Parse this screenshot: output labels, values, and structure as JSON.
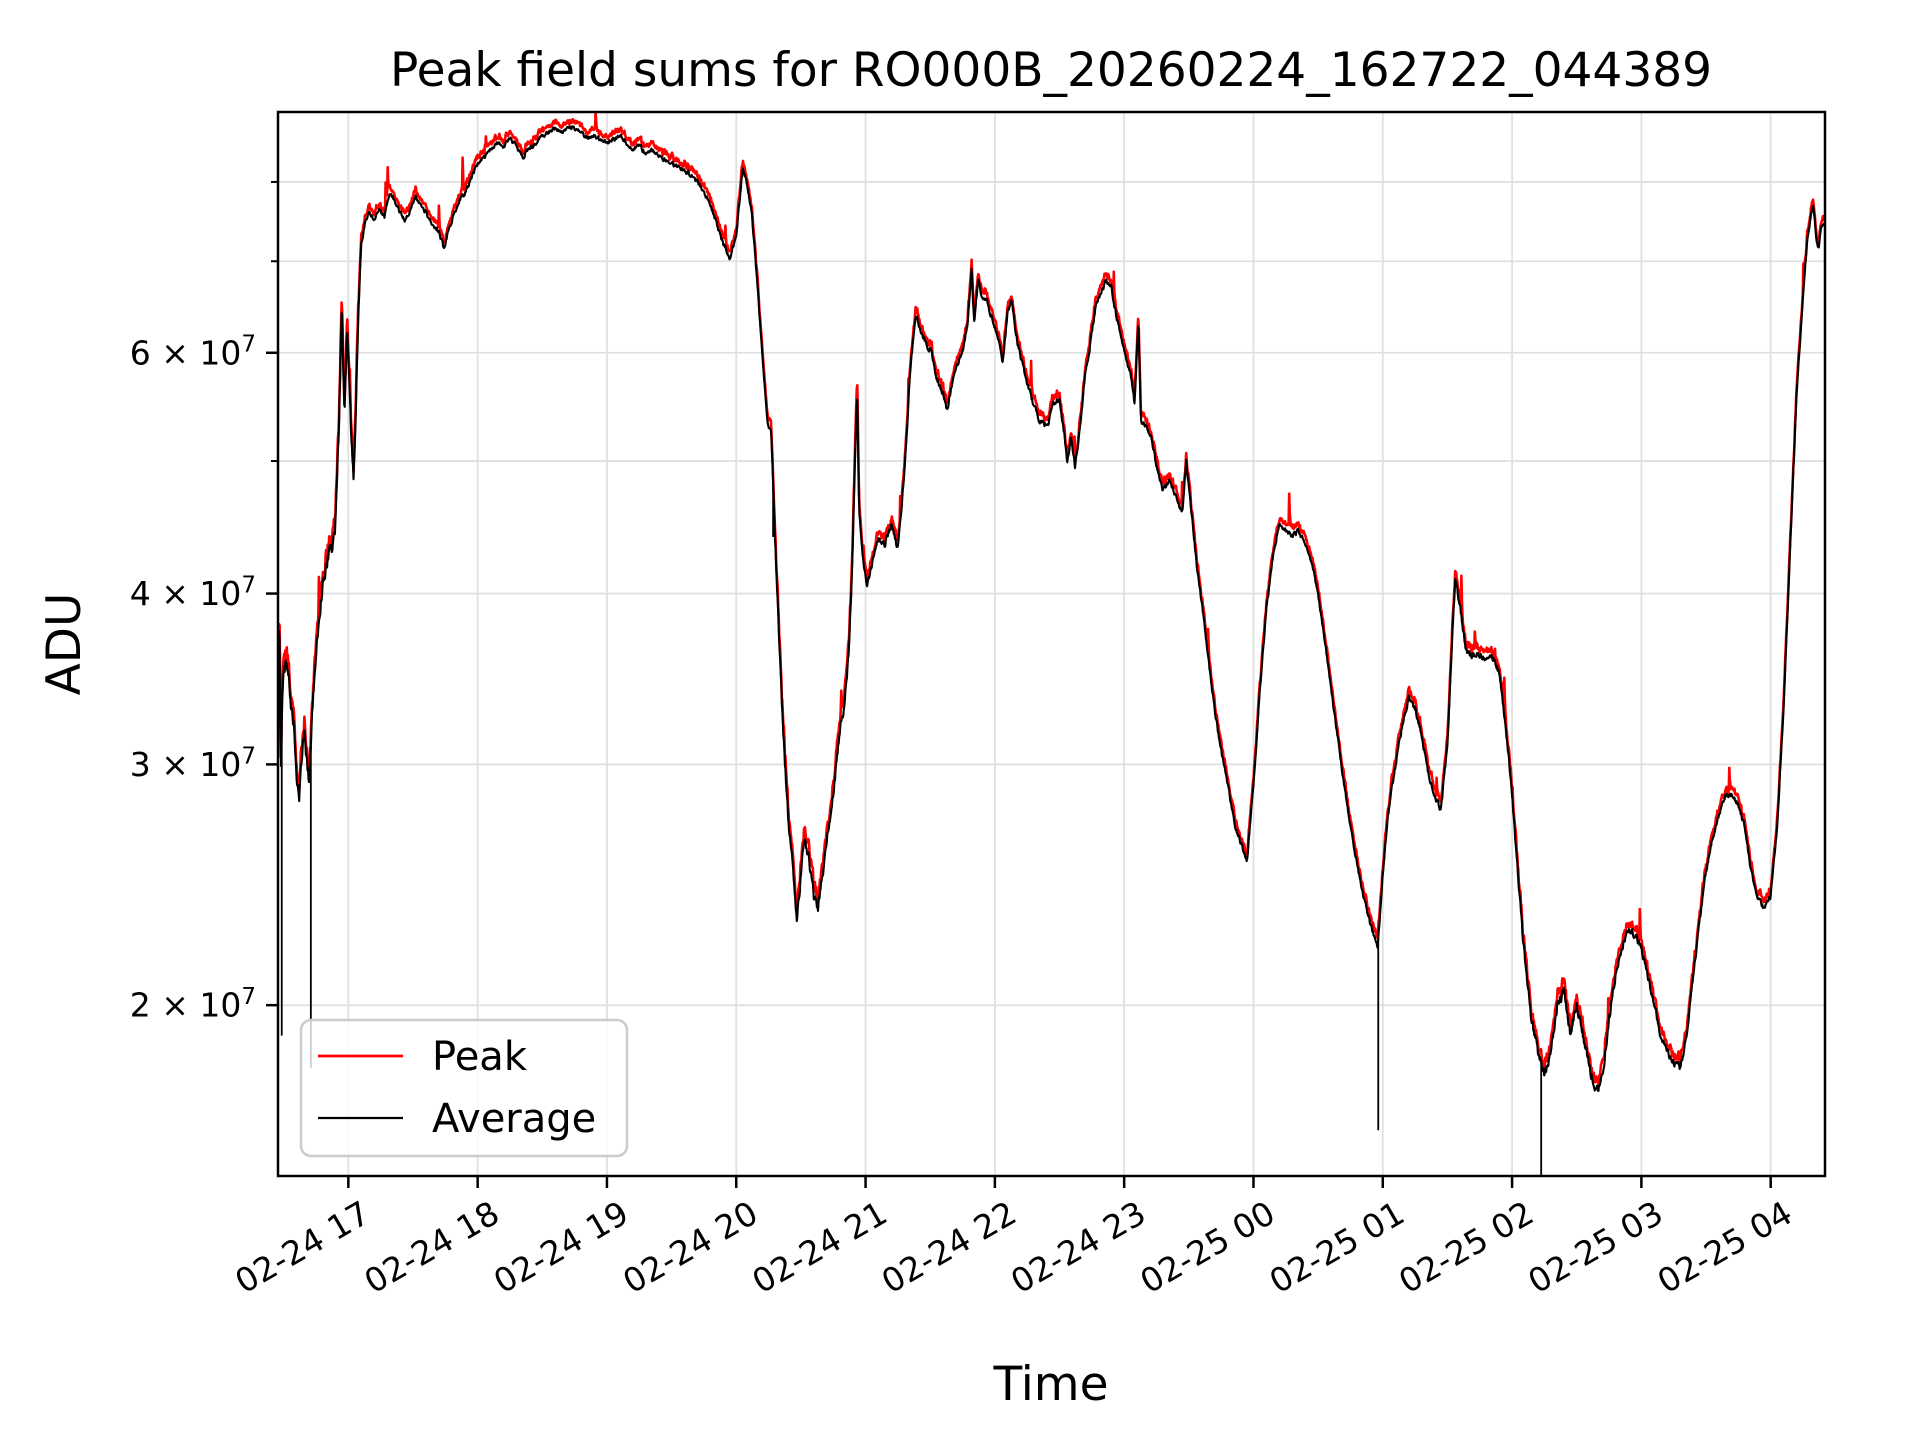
{
  "figure": {
    "title": "Peak field sums for RO000B_20260224_162722_044389",
    "xlabel": "Time",
    "ylabel": "ADU",
    "background": "#ffffff",
    "spine_color": "#000000",
    "grid_color": "#e0e0e0"
  },
  "legend": {
    "position": "lower-left",
    "items": [
      {
        "label": "Peak",
        "color": "#ff0000"
      },
      {
        "label": "Average",
        "color": "#000000"
      }
    ]
  },
  "chart_data": {
    "type": "line",
    "title": "Peak field sums for RO000B_20260224_162722_044389",
    "xlabel": "Time",
    "ylabel": "ADU",
    "yscale": "log",
    "ylim": [
      15000000,
      90000000
    ],
    "xlim_hours": [
      16.456,
      28.42
    ],
    "x_start_label": "02-24 16:27:22",
    "grid": true,
    "x_ticks": [
      {
        "hour": 17,
        "label": "02-24 17"
      },
      {
        "hour": 18,
        "label": "02-24 18"
      },
      {
        "hour": 19,
        "label": "02-24 19"
      },
      {
        "hour": 20,
        "label": "02-24 20"
      },
      {
        "hour": 21,
        "label": "02-24 21"
      },
      {
        "hour": 22,
        "label": "02-24 22"
      },
      {
        "hour": 23,
        "label": "02-24 23"
      },
      {
        "hour": 24,
        "label": "02-25 00"
      },
      {
        "hour": 25,
        "label": "02-25 01"
      },
      {
        "hour": 26,
        "label": "02-25 02"
      },
      {
        "hour": 27,
        "label": "02-25 03"
      },
      {
        "hour": 28,
        "label": "02-25 04"
      }
    ],
    "y_ticks_labeled": [
      {
        "value": 20000000,
        "base": "2 × 10",
        "exp": "7"
      },
      {
        "value": 30000000,
        "base": "3 × 10",
        "exp": "7"
      },
      {
        "value": 40000000,
        "base": "4 × 10",
        "exp": "7"
      },
      {
        "value": 60000000,
        "base": "6 × 10",
        "exp": "7"
      }
    ],
    "y_ticks_minor": [
      50000000,
      70000000,
      80000000
    ],
    "series": [
      {
        "name": "Peak",
        "color": "#ff0000",
        "note": "tracks Average with small positive offset and short upward spikes"
      },
      {
        "name": "Average",
        "color": "#000000",
        "units": "ADU x 1e7",
        "keypoints": [
          [
            16.456,
            3.0
          ],
          [
            16.465,
            3.85
          ],
          [
            16.47,
            3.6
          ],
          [
            16.48,
            3.0
          ],
          [
            16.49,
            3.4
          ],
          [
            16.5,
            3.5
          ],
          [
            16.52,
            3.55
          ],
          [
            16.54,
            3.45
          ],
          [
            16.56,
            3.3
          ],
          [
            16.58,
            3.2
          ],
          [
            16.6,
            2.95
          ],
          [
            16.62,
            2.85
          ],
          [
            16.64,
            3.05
          ],
          [
            16.66,
            3.2
          ],
          [
            16.68,
            3.0
          ],
          [
            16.7,
            2.9
          ],
          [
            16.72,
            3.3
          ],
          [
            16.75,
            3.6
          ],
          [
            16.78,
            3.9
          ],
          [
            16.81,
            4.1
          ],
          [
            16.84,
            4.25
          ],
          [
            16.87,
            4.3
          ],
          [
            16.9,
            4.5
          ],
          [
            16.93,
            5.4
          ],
          [
            16.95,
            6.5
          ],
          [
            16.97,
            5.35
          ],
          [
            16.99,
            6.2
          ],
          [
            17.02,
            5.3
          ],
          [
            17.04,
            4.85
          ],
          [
            17.06,
            5.5
          ],
          [
            17.08,
            6.5
          ],
          [
            17.1,
            7.2
          ],
          [
            17.13,
            7.45
          ],
          [
            17.16,
            7.6
          ],
          [
            17.2,
            7.5
          ],
          [
            17.24,
            7.65
          ],
          [
            17.28,
            7.55
          ],
          [
            17.32,
            7.85
          ],
          [
            17.36,
            7.75
          ],
          [
            17.4,
            7.6
          ],
          [
            17.44,
            7.5
          ],
          [
            17.48,
            7.65
          ],
          [
            17.52,
            7.8
          ],
          [
            17.56,
            7.7
          ],
          [
            17.6,
            7.6
          ],
          [
            17.65,
            7.45
          ],
          [
            17.7,
            7.35
          ],
          [
            17.74,
            7.15
          ],
          [
            17.78,
            7.4
          ],
          [
            17.82,
            7.6
          ],
          [
            17.86,
            7.75
          ],
          [
            17.9,
            7.85
          ],
          [
            17.95,
            8.05
          ],
          [
            18.0,
            8.25
          ],
          [
            18.05,
            8.35
          ],
          [
            18.1,
            8.45
          ],
          [
            18.15,
            8.55
          ],
          [
            18.2,
            8.5
          ],
          [
            18.25,
            8.6
          ],
          [
            18.3,
            8.5
          ],
          [
            18.35,
            8.35
          ],
          [
            18.4,
            8.45
          ],
          [
            18.45,
            8.55
          ],
          [
            18.5,
            8.65
          ],
          [
            18.55,
            8.7
          ],
          [
            18.6,
            8.75
          ],
          [
            18.65,
            8.7
          ],
          [
            18.7,
            8.8
          ],
          [
            18.75,
            8.75
          ],
          [
            18.8,
            8.7
          ],
          [
            18.85,
            8.6
          ],
          [
            18.9,
            8.65
          ],
          [
            18.95,
            8.6
          ],
          [
            19.0,
            8.55
          ],
          [
            19.05,
            8.6
          ],
          [
            19.1,
            8.65
          ],
          [
            19.15,
            8.55
          ],
          [
            19.2,
            8.45
          ],
          [
            19.25,
            8.5
          ],
          [
            19.3,
            8.4
          ],
          [
            19.35,
            8.45
          ],
          [
            19.4,
            8.35
          ],
          [
            19.45,
            8.3
          ],
          [
            19.5,
            8.25
          ],
          [
            19.55,
            8.2
          ],
          [
            19.6,
            8.15
          ],
          [
            19.65,
            8.1
          ],
          [
            19.7,
            8.0
          ],
          [
            19.75,
            7.85
          ],
          [
            19.8,
            7.7
          ],
          [
            19.85,
            7.45
          ],
          [
            19.9,
            7.2
          ],
          [
            19.95,
            7.05
          ],
          [
            20.0,
            7.3
          ],
          [
            20.05,
            8.2
          ],
          [
            20.08,
            8.0
          ],
          [
            20.12,
            7.6
          ],
          [
            20.16,
            6.8
          ],
          [
            20.2,
            6.0
          ],
          [
            20.24,
            5.35
          ],
          [
            20.27,
            5.25
          ],
          [
            20.3,
            4.4
          ],
          [
            20.33,
            3.75
          ],
          [
            20.36,
            3.2
          ],
          [
            20.4,
            2.75
          ],
          [
            20.44,
            2.5
          ],
          [
            20.47,
            2.32
          ],
          [
            20.5,
            2.5
          ],
          [
            20.53,
            2.65
          ],
          [
            20.56,
            2.55
          ],
          [
            20.6,
            2.4
          ],
          [
            20.63,
            2.35
          ],
          [
            20.67,
            2.5
          ],
          [
            20.71,
            2.7
          ],
          [
            20.75,
            2.85
          ],
          [
            20.79,
            3.1
          ],
          [
            20.83,
            3.3
          ],
          [
            20.87,
            3.6
          ],
          [
            20.9,
            4.3
          ],
          [
            20.92,
            5.1
          ],
          [
            20.935,
            5.6
          ],
          [
            20.95,
            4.6
          ],
          [
            20.98,
            4.25
          ],
          [
            21.01,
            4.05
          ],
          [
            21.05,
            4.2
          ],
          [
            21.1,
            4.4
          ],
          [
            21.15,
            4.35
          ],
          [
            21.2,
            4.5
          ],
          [
            21.25,
            4.3
          ],
          [
            21.3,
            4.9
          ],
          [
            21.35,
            5.9
          ],
          [
            21.39,
            6.4
          ],
          [
            21.43,
            6.2
          ],
          [
            21.47,
            6.1
          ],
          [
            21.51,
            6.0
          ],
          [
            21.55,
            5.75
          ],
          [
            21.6,
            5.6
          ],
          [
            21.63,
            5.45
          ],
          [
            21.67,
            5.7
          ],
          [
            21.71,
            5.9
          ],
          [
            21.75,
            6.0
          ],
          [
            21.79,
            6.3
          ],
          [
            21.82,
            6.9
          ],
          [
            21.84,
            6.3
          ],
          [
            21.87,
            6.8
          ],
          [
            21.9,
            6.6
          ],
          [
            21.94,
            6.55
          ],
          [
            21.98,
            6.35
          ],
          [
            22.02,
            6.2
          ],
          [
            22.06,
            5.9
          ],
          [
            22.1,
            6.45
          ],
          [
            22.13,
            6.55
          ],
          [
            22.16,
            6.2
          ],
          [
            22.2,
            5.95
          ],
          [
            22.25,
            5.7
          ],
          [
            22.3,
            5.5
          ],
          [
            22.35,
            5.35
          ],
          [
            22.41,
            5.3
          ],
          [
            22.45,
            5.5
          ],
          [
            22.5,
            5.55
          ],
          [
            22.54,
            5.2
          ],
          [
            22.56,
            4.97
          ],
          [
            22.59,
            5.2
          ],
          [
            22.62,
            4.95
          ],
          [
            22.66,
            5.3
          ],
          [
            22.7,
            5.8
          ],
          [
            22.74,
            6.1
          ],
          [
            22.78,
            6.5
          ],
          [
            22.82,
            6.65
          ],
          [
            22.86,
            6.75
          ],
          [
            22.9,
            6.7
          ],
          [
            22.93,
            6.45
          ],
          [
            22.97,
            6.2
          ],
          [
            23.01,
            5.95
          ],
          [
            23.05,
            5.8
          ],
          [
            23.08,
            5.5
          ],
          [
            23.11,
            6.35
          ],
          [
            23.13,
            5.35
          ],
          [
            23.17,
            5.3
          ],
          [
            23.21,
            5.2
          ],
          [
            23.25,
            4.95
          ],
          [
            23.3,
            4.75
          ],
          [
            23.35,
            4.85
          ],
          [
            23.4,
            4.7
          ],
          [
            23.45,
            4.6
          ],
          [
            23.48,
            5.0
          ],
          [
            23.52,
            4.6
          ],
          [
            23.56,
            4.2
          ],
          [
            23.62,
            3.8
          ],
          [
            23.68,
            3.4
          ],
          [
            23.74,
            3.1
          ],
          [
            23.8,
            2.9
          ],
          [
            23.86,
            2.7
          ],
          [
            23.92,
            2.6
          ],
          [
            23.95,
            2.55
          ],
          [
            24.0,
            2.9
          ],
          [
            24.05,
            3.4
          ],
          [
            24.1,
            3.9
          ],
          [
            24.15,
            4.25
          ],
          [
            24.2,
            4.5
          ],
          [
            24.25,
            4.45
          ],
          [
            24.3,
            4.4
          ],
          [
            24.35,
            4.45
          ],
          [
            24.4,
            4.35
          ],
          [
            24.45,
            4.2
          ],
          [
            24.5,
            4.0
          ],
          [
            24.55,
            3.7
          ],
          [
            24.62,
            3.3
          ],
          [
            24.7,
            2.9
          ],
          [
            24.78,
            2.6
          ],
          [
            24.85,
            2.4
          ],
          [
            24.9,
            2.3
          ],
          [
            24.96,
            2.2
          ],
          [
            25.0,
            2.5
          ],
          [
            25.05,
            2.8
          ],
          [
            25.1,
            3.0
          ],
          [
            25.15,
            3.2
          ],
          [
            25.2,
            3.35
          ],
          [
            25.25,
            3.3
          ],
          [
            25.3,
            3.15
          ],
          [
            25.35,
            2.95
          ],
          [
            25.4,
            2.85
          ],
          [
            25.45,
            2.78
          ],
          [
            25.5,
            3.1
          ],
          [
            25.53,
            3.6
          ],
          [
            25.56,
            4.1
          ],
          [
            25.6,
            3.9
          ],
          [
            25.64,
            3.65
          ],
          [
            25.68,
            3.6
          ],
          [
            25.72,
            3.62
          ],
          [
            25.76,
            3.6
          ],
          [
            25.8,
            3.58
          ],
          [
            25.85,
            3.6
          ],
          [
            25.9,
            3.5
          ],
          [
            25.95,
            3.2
          ],
          [
            26.0,
            2.85
          ],
          [
            26.05,
            2.45
          ],
          [
            26.1,
            2.15
          ],
          [
            26.15,
            1.95
          ],
          [
            26.2,
            1.85
          ],
          [
            26.25,
            1.78
          ],
          [
            26.3,
            1.85
          ],
          [
            26.35,
            2.0
          ],
          [
            26.4,
            2.05
          ],
          [
            26.45,
            1.9
          ],
          [
            26.5,
            2.0
          ],
          [
            26.55,
            1.9
          ],
          [
            26.6,
            1.8
          ],
          [
            26.65,
            1.73
          ],
          [
            26.7,
            1.78
          ],
          [
            26.75,
            1.95
          ],
          [
            26.8,
            2.1
          ],
          [
            26.85,
            2.2
          ],
          [
            26.9,
            2.28
          ],
          [
            26.95,
            2.25
          ],
          [
            27.0,
            2.2
          ],
          [
            27.05,
            2.1
          ],
          [
            27.1,
            2.0
          ],
          [
            27.15,
            1.9
          ],
          [
            27.2,
            1.85
          ],
          [
            27.25,
            1.82
          ],
          [
            27.3,
            1.8
          ],
          [
            27.35,
            1.9
          ],
          [
            27.4,
            2.1
          ],
          [
            27.45,
            2.3
          ],
          [
            27.5,
            2.5
          ],
          [
            27.55,
            2.65
          ],
          [
            27.6,
            2.75
          ],
          [
            27.65,
            2.85
          ],
          [
            27.7,
            2.85
          ],
          [
            27.75,
            2.8
          ],
          [
            27.8,
            2.7
          ],
          [
            27.85,
            2.5
          ],
          [
            27.9,
            2.4
          ],
          [
            27.95,
            2.35
          ],
          [
            28.0,
            2.4
          ],
          [
            28.05,
            2.7
          ],
          [
            28.1,
            3.3
          ],
          [
            28.15,
            4.3
          ],
          [
            28.2,
            5.6
          ],
          [
            28.25,
            6.6
          ],
          [
            28.28,
            7.2
          ],
          [
            28.31,
            7.55
          ],
          [
            28.33,
            7.7
          ],
          [
            28.35,
            7.3
          ],
          [
            28.37,
            7.15
          ],
          [
            28.39,
            7.45
          ],
          [
            28.42,
            7.45
          ]
        ]
      }
    ],
    "dropout_spikes_1e7": [
      [
        16.485,
        1.9
      ],
      [
        16.71,
        1.8
      ],
      [
        20.285,
        4.4
      ],
      [
        24.965,
        1.62
      ],
      [
        26.225,
        1.5
      ]
    ]
  }
}
